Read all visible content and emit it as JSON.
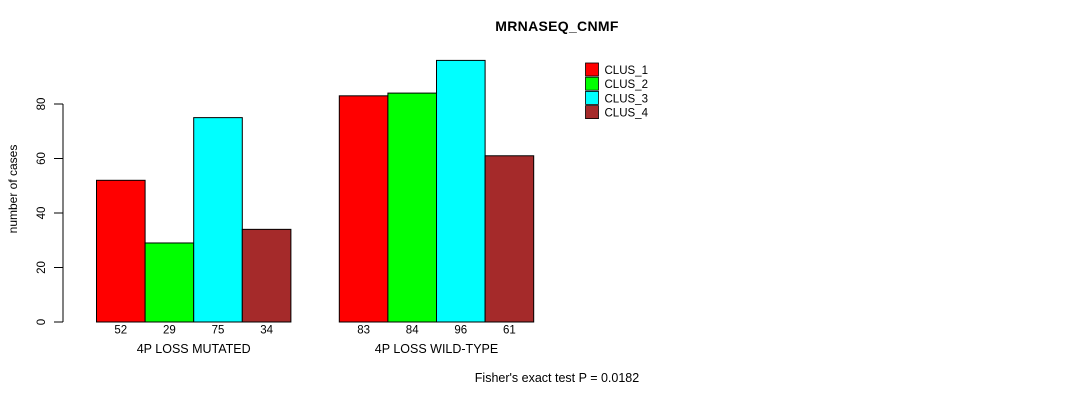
{
  "chart_data": {
    "type": "bar",
    "title": "MRNASEQ_CNMF",
    "ylabel": "number of cases",
    "xlabel": "",
    "categories": [
      "4P LOSS MUTATED",
      "4P LOSS WILD-TYPE"
    ],
    "series": [
      {
        "name": "CLUS_1",
        "color": "#ff0000",
        "values": [
          52,
          83
        ]
      },
      {
        "name": "CLUS_2",
        "color": "#00ff00",
        "values": [
          29,
          84
        ]
      },
      {
        "name": "CLUS_3",
        "color": "#00ffff",
        "values": [
          75,
          96
        ]
      },
      {
        "name": "CLUS_4",
        "color": "#a52a2a",
        "values": [
          34,
          61
        ]
      }
    ],
    "bar_value_labels": [
      [
        52,
        29,
        75,
        34
      ],
      [
        83,
        84,
        96,
        61
      ]
    ],
    "yticks": [
      0,
      20,
      40,
      60,
      80
    ],
    "ylim": [
      0,
      96
    ],
    "axis_max": 80,
    "grid": false,
    "legend_position": "top-right",
    "legend_entries": [
      "CLUS_1",
      "CLUS_2",
      "CLUS_3",
      "CLUS_4"
    ],
    "annotation": "Fisher's exact test P = 0.0182",
    "colors": {
      "axis": "#000000",
      "text": "#000000",
      "bar_border": "#000000",
      "background": "#ffffff"
    }
  }
}
